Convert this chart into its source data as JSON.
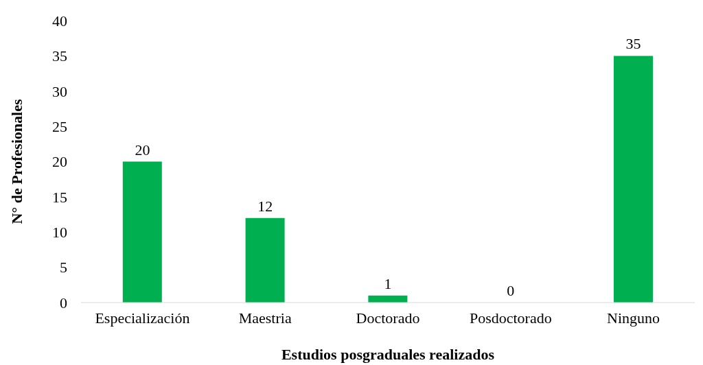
{
  "chart_data": {
    "type": "bar",
    "xlabel": "Estudios posgraduales realizados",
    "ylabel": "N° de Profesionales",
    "categories": [
      "Especialización",
      "Maestria",
      "Doctorado",
      "Posdoctorado",
      "Ninguno"
    ],
    "values": [
      20,
      12,
      1,
      0,
      35
    ],
    "color": "#00b050",
    "ylim": [
      0,
      40
    ],
    "yticks": [
      0,
      5,
      10,
      15,
      20,
      25,
      30,
      35,
      40
    ],
    "grid": false,
    "legend": false,
    "data_labels": true
  }
}
